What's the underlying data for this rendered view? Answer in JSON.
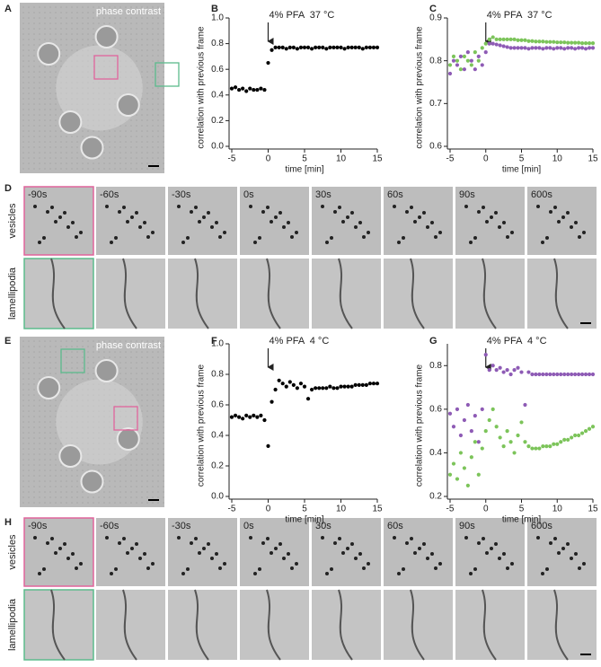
{
  "figure": {
    "panel_labels": [
      "A",
      "B",
      "C",
      "D",
      "E",
      "F",
      "G",
      "H"
    ],
    "image_captions": [
      "phase contrast",
      "phase contrast"
    ],
    "strips": [
      {
        "times": [
          "-90s",
          "-60s",
          "-30s",
          "0s",
          "30s",
          "60s",
          "90s",
          "600s"
        ],
        "row_labels": [
          "vesicles",
          "lamellipodia"
        ]
      },
      {
        "times": [
          "-90s",
          "-60s",
          "-30s",
          "0s",
          "30s",
          "60s",
          "90s",
          "600s"
        ],
        "row_labels": [
          "vesicles",
          "lamellipodia"
        ]
      }
    ]
  },
  "chart_data": [
    {
      "type": "scatter",
      "annotation": "4% PFA  37 °C",
      "xlabel": "time [min]",
      "ylabel": "correlation with previous frame",
      "x": [
        -5,
        -4.5,
        -4,
        -3.5,
        -3,
        -2.5,
        -2,
        -1.5,
        -1,
        -0.5,
        0,
        0.5,
        1,
        1.5,
        2,
        2.5,
        3,
        3.5,
        4,
        4.5,
        5,
        5.5,
        6,
        6.5,
        7,
        7.5,
        8,
        8.5,
        9,
        9.5,
        10,
        10.5,
        11,
        11.5,
        12,
        12.5,
        13,
        13.5,
        14,
        14.5,
        15
      ],
      "series": [
        {
          "color": "#000000",
          "values": [
            0.45,
            0.46,
            0.44,
            0.45,
            0.43,
            0.45,
            0.44,
            0.44,
            0.45,
            0.44,
            0.65,
            0.75,
            0.77,
            0.77,
            0.77,
            0.76,
            0.77,
            0.77,
            0.76,
            0.77,
            0.77,
            0.77,
            0.76,
            0.77,
            0.77,
            0.77,
            0.76,
            0.77,
            0.77,
            0.77,
            0.77,
            0.76,
            0.77,
            0.77,
            0.77,
            0.77,
            0.76,
            0.77,
            0.77,
            0.77,
            0.77
          ]
        }
      ],
      "xlim": [
        -5,
        15
      ],
      "xticks": [
        -5,
        0,
        5,
        10,
        15
      ],
      "ylim": [
        0,
        1
      ],
      "yticks": [
        {
          "value": 0,
          "label": "0.0"
        },
        0.2,
        0.4,
        0.6,
        0.8,
        {
          "value": 1,
          "label": "1.0"
        }
      ]
    },
    {
      "type": "scatter",
      "annotation": "4% PFA  37 °C",
      "xlabel": "time [min]",
      "ylabel": "correlation with previous frame",
      "x": [
        -5,
        -4.5,
        -4,
        -3.5,
        -3,
        -2.5,
        -2,
        -1.5,
        -1,
        -0.5,
        0,
        0.5,
        1,
        1.5,
        2,
        2.5,
        3,
        3.5,
        4,
        4.5,
        5,
        5.5,
        6,
        6.5,
        7,
        7.5,
        8,
        8.5,
        9,
        9.5,
        10,
        10.5,
        11,
        11.5,
        12,
        12.5,
        13,
        13.5,
        14,
        14.5,
        15
      ],
      "series": [
        {
          "color": "#7cc45a",
          "values": [
            0.79,
            0.81,
            0.8,
            0.78,
            0.81,
            0.8,
            0.79,
            0.82,
            0.8,
            0.83,
            0.84,
            0.85,
            0.855,
            0.85,
            0.85,
            0.85,
            0.85,
            0.85,
            0.85,
            0.848,
            0.848,
            0.848,
            0.846,
            0.846,
            0.845,
            0.845,
            0.845,
            0.844,
            0.844,
            0.844,
            0.843,
            0.843,
            0.843,
            0.842,
            0.842,
            0.842,
            0.842,
            0.841,
            0.841,
            0.841,
            0.841
          ]
        },
        {
          "color": "#8e5bb5",
          "values": [
            0.77,
            0.8,
            0.79,
            0.81,
            0.78,
            0.82,
            0.8,
            0.78,
            0.81,
            0.79,
            0.82,
            0.84,
            0.84,
            0.838,
            0.836,
            0.834,
            0.832,
            0.83,
            0.83,
            0.83,
            0.83,
            0.83,
            0.828,
            0.83,
            0.83,
            0.83,
            0.828,
            0.83,
            0.83,
            0.828,
            0.83,
            0.83,
            0.828,
            0.83,
            0.83,
            0.828,
            0.83,
            0.83,
            0.828,
            0.83,
            0.83
          ]
        }
      ],
      "xlim": [
        -5,
        15
      ],
      "xticks": [
        -5,
        0,
        5,
        10,
        15
      ],
      "ylim": [
        0.6,
        0.9
      ],
      "yticks": [
        0.6,
        0.7,
        0.8,
        0.9
      ]
    },
    {
      "type": "scatter",
      "annotation": "4% PFA  4 °C",
      "xlabel": "time [min]",
      "ylabel": "correlation with previous frame",
      "x": [
        -5,
        -4.5,
        -4,
        -3.5,
        -3,
        -2.5,
        -2,
        -1.5,
        -1,
        -0.5,
        0,
        0.5,
        1,
        1.5,
        2,
        2.5,
        3,
        3.5,
        4,
        4.5,
        5,
        5.5,
        6,
        6.5,
        7,
        7.5,
        8,
        8.5,
        9,
        9.5,
        10,
        10.5,
        11,
        11.5,
        12,
        12.5,
        13,
        13.5,
        14,
        14.5,
        15
      ],
      "series": [
        {
          "color": "#000000",
          "values": [
            0.52,
            0.53,
            0.52,
            0.51,
            0.53,
            0.52,
            0.53,
            0.52,
            0.53,
            0.5,
            0.33,
            0.62,
            0.7,
            0.76,
            0.74,
            0.72,
            0.75,
            0.73,
            0.71,
            0.74,
            0.72,
            0.64,
            0.7,
            0.71,
            0.71,
            0.71,
            0.71,
            0.72,
            0.71,
            0.71,
            0.72,
            0.72,
            0.72,
            0.72,
            0.73,
            0.73,
            0.73,
            0.73,
            0.74,
            0.74,
            0.74
          ]
        }
      ],
      "xlim": [
        -5,
        15
      ],
      "xticks": [
        -5,
        0,
        5,
        10,
        15
      ],
      "ylim": [
        0,
        1
      ],
      "yticks": [
        {
          "value": 0,
          "label": "0.0"
        },
        0.2,
        0.4,
        0.6,
        0.8,
        {
          "value": 1,
          "label": "1.0"
        }
      ]
    },
    {
      "type": "scatter",
      "annotation": "4% PFA  4 °C",
      "xlabel": "time [min]",
      "ylabel": "correlation with previous frame",
      "x": [
        -5,
        -4.5,
        -4,
        -3.5,
        -3,
        -2.5,
        -2,
        -1.5,
        -1,
        -0.5,
        0,
        0.5,
        1,
        1.5,
        2,
        2.5,
        3,
        3.5,
        4,
        4.5,
        5,
        5.5,
        6,
        6.5,
        7,
        7.5,
        8,
        8.5,
        9,
        9.5,
        10,
        10.5,
        11,
        11.5,
        12,
        12.5,
        13,
        13.5,
        14,
        14.5,
        15
      ],
      "series": [
        {
          "color": "#8e5bb5",
          "values": [
            0.58,
            0.52,
            0.6,
            0.48,
            0.55,
            0.62,
            0.5,
            0.57,
            0.45,
            0.6,
            0.85,
            0.78,
            0.8,
            0.78,
            0.79,
            0.77,
            0.78,
            0.76,
            0.78,
            0.79,
            0.77,
            0.62,
            0.77,
            0.76,
            0.76,
            0.76,
            0.76,
            0.76,
            0.76,
            0.76,
            0.76,
            0.76,
            0.76,
            0.76,
            0.76,
            0.76,
            0.76,
            0.76,
            0.76,
            0.76,
            0.76
          ]
        },
        {
          "color": "#7cc45a",
          "values": [
            0.3,
            0.35,
            0.28,
            0.4,
            0.33,
            0.25,
            0.38,
            0.45,
            0.3,
            0.42,
            0.5,
            0.55,
            0.6,
            0.52,
            0.47,
            0.43,
            0.5,
            0.45,
            0.4,
            0.48,
            0.54,
            0.45,
            0.43,
            0.42,
            0.42,
            0.42,
            0.43,
            0.43,
            0.43,
            0.44,
            0.44,
            0.45,
            0.46,
            0.46,
            0.47,
            0.48,
            0.48,
            0.49,
            0.5,
            0.51,
            0.52
          ]
        }
      ],
      "xlim": [
        -5,
        15
      ],
      "xticks": [
        -5,
        0,
        5,
        10,
        15
      ],
      "ylim": [
        0.2,
        0.9
      ],
      "yticks": [
        0.2,
        0.4,
        0.6,
        0.8
      ]
    }
  ]
}
